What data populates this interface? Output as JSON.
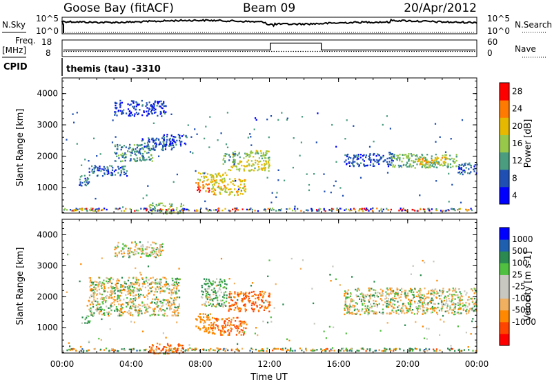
{
  "header": {
    "station": "Goose Bay (fitACF)",
    "beam": "Beam 09",
    "date": "20/Apr/2012"
  },
  "strips": {
    "nsky_label": "N.Sky",
    "nsearch_label": "N.Search",
    "freq_label": "Freq.",
    "freq_unit": "[MHz]",
    "nave_label": "Nave",
    "cpid_label": "CPID",
    "cpid_value": "themis (tau) -3310",
    "noise_left_ticks": [
      "10^5",
      "10^0"
    ],
    "noise_right_ticks": [
      "10^5",
      "10^0"
    ],
    "freq_ticks": [
      "18",
      "8"
    ],
    "nave_ticks": [
      "60",
      "0"
    ]
  },
  "chart_data": [
    {
      "type": "heatmap",
      "panel": "power",
      "xlabel": "",
      "ylabel": "Slant Range [km]",
      "xlim": [
        0,
        24
      ],
      "ylim": [
        180,
        4500
      ],
      "y_ticks": [
        1000,
        2000,
        3000,
        4000
      ],
      "colorbar": {
        "label": "Power [dB]",
        "ticks": [
          "28",
          "24",
          "20",
          "16",
          "12",
          "8",
          "4"
        ],
        "colors": [
          "#0000ff",
          "#1f4fb3",
          "#4a9d7f",
          "#98c84a",
          "#e6b800",
          "#ff7a00",
          "#ff0000"
        ],
        "range": [
          0,
          30
        ]
      },
      "regions": [
        {
          "t0": 1.0,
          "t1": 1.6,
          "r0": 1080,
          "r1": 1420,
          "level": 8
        },
        {
          "t0": 1.5,
          "t1": 3.8,
          "r0": 1380,
          "r1": 1720,
          "level": 7
        },
        {
          "t0": 3.0,
          "t1": 5.2,
          "r0": 1850,
          "r1": 2400,
          "level": 10
        },
        {
          "t0": 4.5,
          "t1": 6.5,
          "r0": 2200,
          "r1": 2600,
          "level": 7
        },
        {
          "t0": 5.8,
          "t1": 7.2,
          "r0": 2350,
          "r1": 2720,
          "level": 6
        },
        {
          "t0": 3.0,
          "t1": 6.0,
          "r0": 3300,
          "r1": 3800,
          "level": 5
        },
        {
          "t0": 7.7,
          "t1": 8.5,
          "r0": 850,
          "r1": 1200,
          "level": 25
        },
        {
          "t0": 7.8,
          "t1": 9.5,
          "r0": 1200,
          "r1": 1500,
          "level": 17
        },
        {
          "t0": 8.6,
          "t1": 10.6,
          "r0": 780,
          "r1": 1300,
          "level": 19
        },
        {
          "t0": 9.6,
          "t1": 12.0,
          "r0": 1550,
          "r1": 1900,
          "level": 17
        },
        {
          "t0": 9.8,
          "t1": 12.0,
          "r0": 1950,
          "r1": 2200,
          "level": 14
        },
        {
          "t0": 9.2,
          "t1": 10.0,
          "r0": 1750,
          "r1": 2100,
          "level": 10
        },
        {
          "t0": 16.3,
          "t1": 19.2,
          "r0": 1700,
          "r1": 2100,
          "level": 6
        },
        {
          "t0": 19.0,
          "t1": 22.8,
          "r0": 1650,
          "r1": 2100,
          "level": 13
        },
        {
          "t0": 20.5,
          "t1": 22.2,
          "r0": 1750,
          "r1": 2000,
          "level": 20
        },
        {
          "t0": 22.8,
          "t1": 24.0,
          "r0": 1450,
          "r1": 1800,
          "level": 7
        },
        {
          "t0": 5.0,
          "t1": 7.0,
          "r0": 180,
          "r1": 520,
          "level": 14
        }
      ]
    },
    {
      "type": "heatmap",
      "panel": "velocity",
      "xlabel": "Time UT",
      "ylabel": "Slant Range [km]",
      "xlim": [
        0,
        24
      ],
      "ylim": [
        180,
        4500
      ],
      "x_ticks": [
        "00:00",
        "04:00",
        "08:00",
        "12:00",
        "16:00",
        "20:00",
        "00:00"
      ],
      "y_ticks": [
        1000,
        2000,
        3000,
        4000
      ],
      "colorbar": {
        "label": "Velocity [m s-1]",
        "ticks": [
          "1000",
          "500",
          "100",
          "25",
          "-25",
          "-100",
          "-500",
          "-1000"
        ],
        "colors": [
          "#ff0000",
          "#ff4400",
          "#ff8800",
          "#f0b060",
          "#c8c8c0",
          "#c8c8c0",
          "#50c040",
          "#2a8a50",
          "#1f5fb0",
          "#0000ff"
        ],
        "range": [
          -1000,
          1000
        ]
      },
      "regions": [
        {
          "t0": 1.0,
          "t1": 1.6,
          "r0": 1150,
          "r1": 1400,
          "level": 120
        },
        {
          "t0": 1.5,
          "t1": 6.8,
          "r0": 1400,
          "r1": 2650,
          "level": 0
        },
        {
          "t0": 3.0,
          "t1": 5.8,
          "r0": 3300,
          "r1": 3800,
          "level": 0
        },
        {
          "t0": 7.7,
          "t1": 8.6,
          "r0": 850,
          "r1": 1500,
          "level": -300
        },
        {
          "t0": 8.6,
          "t1": 10.6,
          "r0": 780,
          "r1": 1350,
          "level": -500
        },
        {
          "t0": 9.6,
          "t1": 12.0,
          "r0": 1550,
          "r1": 2200,
          "level": -500
        },
        {
          "t0": 8.0,
          "t1": 9.5,
          "r0": 1700,
          "r1": 2600,
          "level": 100
        },
        {
          "t0": 16.3,
          "t1": 24.0,
          "r0": 1450,
          "r1": 2300,
          "level": 0
        },
        {
          "t0": 5.0,
          "t1": 7.0,
          "r0": 180,
          "r1": 520,
          "level": -500
        }
      ]
    }
  ]
}
